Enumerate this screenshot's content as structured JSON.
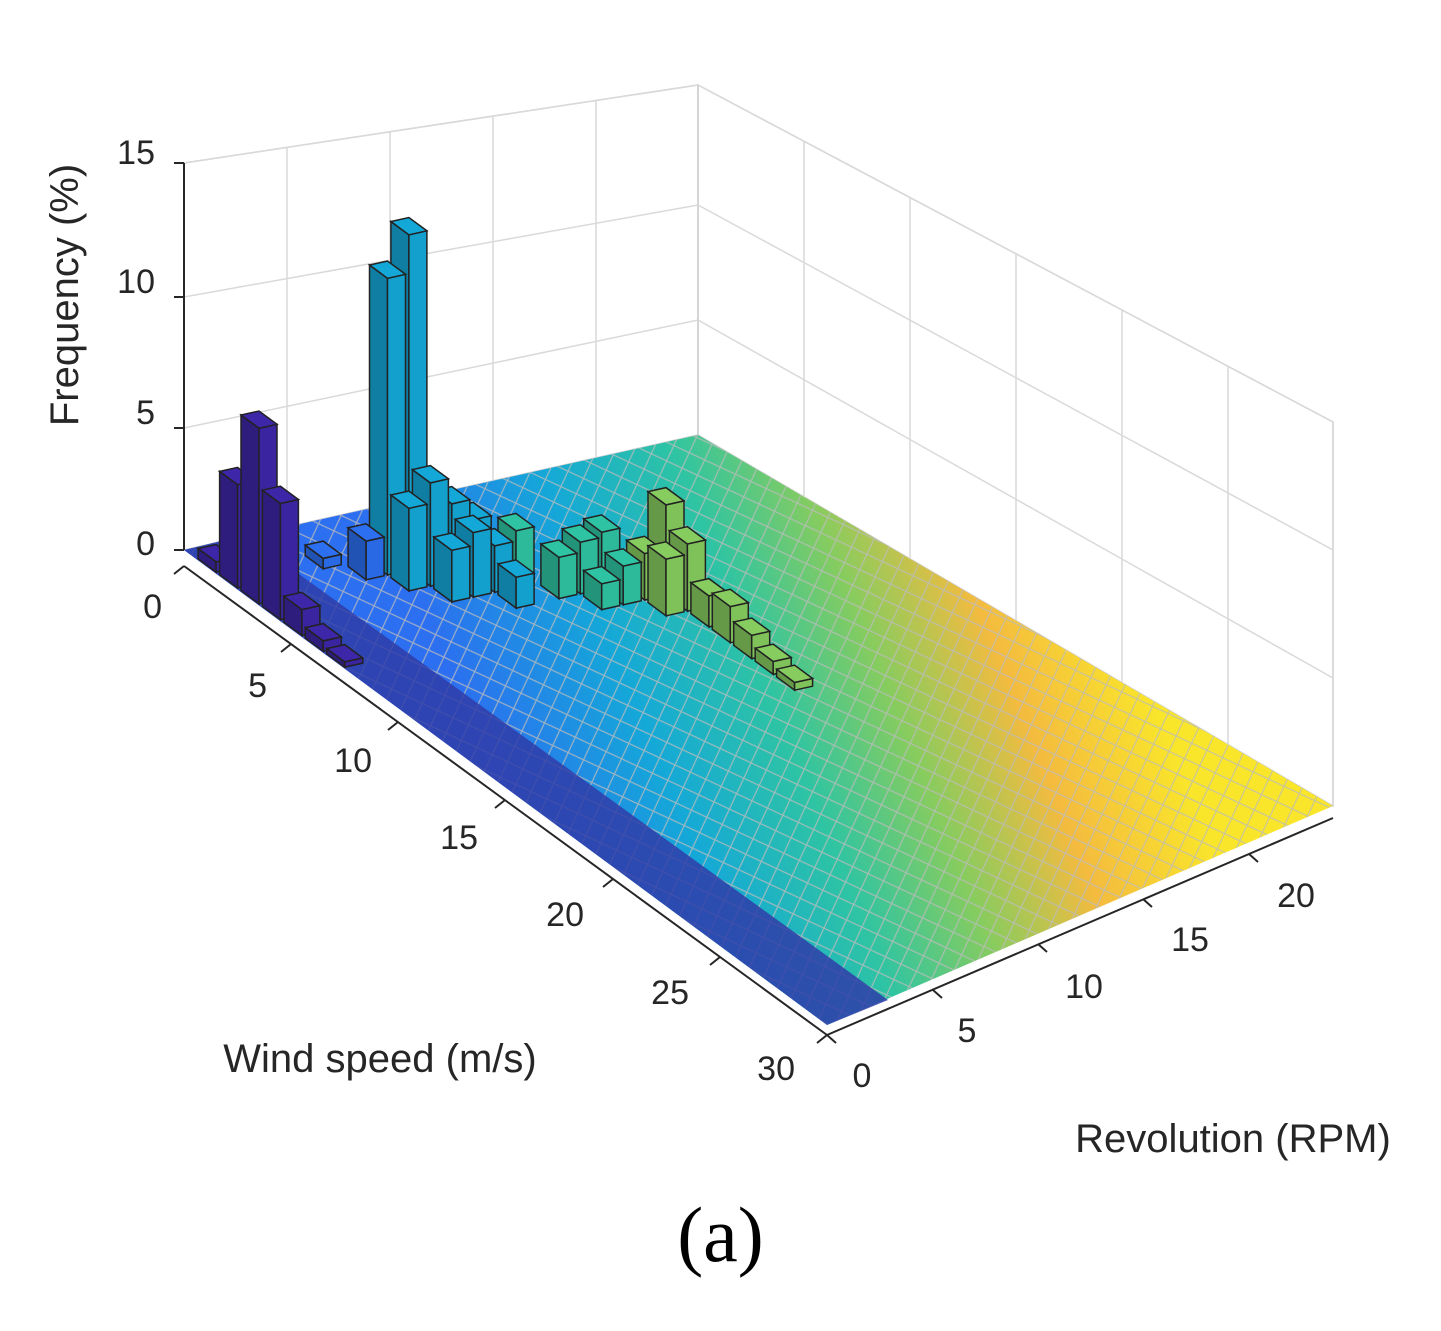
{
  "figure": {
    "caption": "(a)"
  },
  "chart_data": {
    "type": "bar3",
    "title": "",
    "xlabel": "Wind speed (m/s)",
    "ylabel": "Revolution (RPM)",
    "zlabel": "Frequency (%)",
    "xlim": [
      0,
      30
    ],
    "ylim": [
      0,
      24
    ],
    "zlim": [
      0,
      15
    ],
    "xticks": [
      "0",
      "5",
      "10",
      "15",
      "20",
      "25",
      "30"
    ],
    "yticks": [
      "0",
      "5",
      "10",
      "15",
      "20"
    ],
    "zticks": [
      "0",
      "5",
      "10",
      "15"
    ],
    "colormap": [
      "#3e26a8",
      "#2c6ff0",
      "#14a8d8",
      "#2ec4a3",
      "#86cc5f",
      "#f4bb3f",
      "#f9e62a"
    ],
    "bars": [
      {
        "wind": 1,
        "rpm": 0,
        "value": 0.4
      },
      {
        "wind": 2,
        "rpm": 0,
        "value": 4.0
      },
      {
        "wind": 3,
        "rpm": 0,
        "value": 6.8
      },
      {
        "wind": 4,
        "rpm": 0,
        "value": 4.5
      },
      {
        "wind": 5,
        "rpm": 0,
        "value": 1.0
      },
      {
        "wind": 6,
        "rpm": 0,
        "value": 0.4
      },
      {
        "wind": 7,
        "rpm": 0,
        "value": 0.2
      },
      {
        "wind": 2,
        "rpm": 4,
        "value": 0.4
      },
      {
        "wind": 3,
        "rpm": 5,
        "value": 1.5
      },
      {
        "wind": 3,
        "rpm": 6,
        "value": 11.5
      },
      {
        "wind": 3,
        "rpm": 7,
        "value": 13.0
      },
      {
        "wind": 4,
        "rpm": 6,
        "value": 3.2
      },
      {
        "wind": 4,
        "rpm": 7,
        "value": 4.0
      },
      {
        "wind": 4,
        "rpm": 8,
        "value": 3.0
      },
      {
        "wind": 4,
        "rpm": 9,
        "value": 2.2
      },
      {
        "wind": 5,
        "rpm": 7,
        "value": 2.0
      },
      {
        "wind": 5,
        "rpm": 8,
        "value": 2.5
      },
      {
        "wind": 5,
        "rpm": 9,
        "value": 1.8
      },
      {
        "wind": 5,
        "rpm": 10,
        "value": 2.2
      },
      {
        "wind": 6,
        "rpm": 9,
        "value": 1.2
      },
      {
        "wind": 6,
        "rpm": 11,
        "value": 1.6
      },
      {
        "wind": 6,
        "rpm": 12,
        "value": 2.0
      },
      {
        "wind": 6,
        "rpm": 13,
        "value": 2.2
      },
      {
        "wind": 7,
        "rpm": 12,
        "value": 1.0
      },
      {
        "wind": 7,
        "rpm": 13,
        "value": 1.5
      },
      {
        "wind": 7,
        "rpm": 14,
        "value": 1.8
      },
      {
        "wind": 7,
        "rpm": 15,
        "value": 3.5
      },
      {
        "wind": 8,
        "rpm": 14,
        "value": 2.2
      },
      {
        "wind": 8,
        "rpm": 15,
        "value": 2.6
      },
      {
        "wind": 9,
        "rpm": 15,
        "value": 1.2
      },
      {
        "wind": 10,
        "rpm": 15,
        "value": 1.4
      },
      {
        "wind": 11,
        "rpm": 15,
        "value": 0.9
      },
      {
        "wind": 12,
        "rpm": 15,
        "value": 0.5
      },
      {
        "wind": 13,
        "rpm": 15,
        "value": 0.3
      }
    ]
  }
}
